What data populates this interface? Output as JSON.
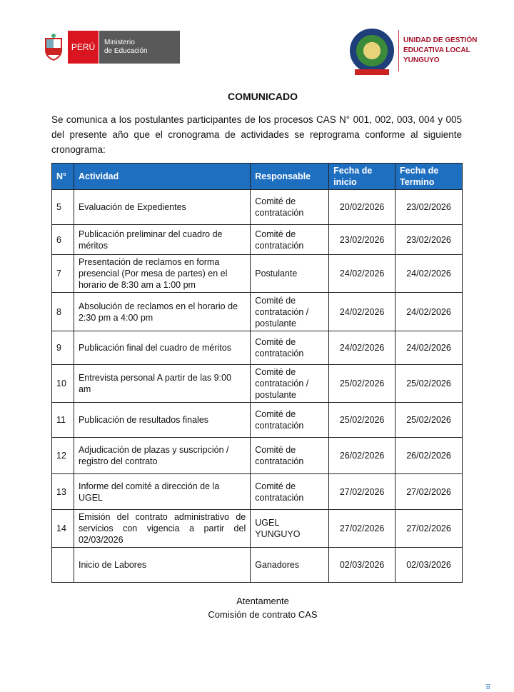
{
  "header": {
    "left_logo": {
      "country": "PERÚ",
      "ministry_line1": "Ministerio",
      "ministry_line2": "de Educación"
    },
    "right_logo": {
      "line1": "UNIDAD DE GESTIÓN",
      "line2": "EDUCATIVA LOCAL",
      "line3": "YUNGUYO"
    }
  },
  "title": "COMUNICADO",
  "intro": "Se comunica a los postulantes participantes de los procesos CAS N° 001, 002, 003, 004 y 005 del presente año que el cronograma de actividades se reprograma conforme al siguiente cronograma:",
  "table": {
    "header_color": "#1f6fc0",
    "columns": [
      "N°",
      "Actividad",
      "Responsable",
      "Fecha de inicio",
      "Fecha de Termino"
    ],
    "rows": [
      {
        "n": "5",
        "actividad": "Evaluación de Expedientes",
        "responsable": "Comité de contratación",
        "inicio": "20/02/2026",
        "termino": "23/02/2026"
      },
      {
        "n": "6",
        "actividad": "Publicación preliminar del cuadro de méritos",
        "responsable": "Comité de contratación",
        "inicio": "23/02/2026",
        "termino": "23/02/2026"
      },
      {
        "n": "7",
        "actividad": "Presentación de reclamos en forma presencial (Por mesa de partes) en el horario de 8:30 am a 1:00 pm",
        "responsable": "Postulante",
        "inicio": "24/02/2026",
        "termino": "24/02/2026"
      },
      {
        "n": "8",
        "actividad": "Absolución de reclamos en el horario de 2:30 pm a 4:00 pm",
        "responsable": "Comité de contratación / postulante",
        "inicio": "24/02/2026",
        "termino": "24/02/2026"
      },
      {
        "n": "9",
        "actividad": "Publicación final del cuadro de méritos",
        "responsable": "Comité de contratación",
        "inicio": "24/02/2026",
        "termino": "24/02/2026"
      },
      {
        "n": "10",
        "actividad": "Entrevista personal A partir de las 9:00 am",
        "responsable": "Comité de contratación / postulante",
        "inicio": "25/02/2026",
        "termino": "25/02/2026"
      },
      {
        "n": "11",
        "actividad": "Publicación de resultados finales",
        "responsable": "Comité de contratación",
        "inicio": "25/02/2026",
        "termino": "25/02/2026"
      },
      {
        "n": "12",
        "actividad": "Adjudicación de plazas y suscripción / registro del contrato",
        "responsable": "Comité de contratación",
        "inicio": "26/02/2026",
        "termino": "26/02/2026"
      },
      {
        "n": "13",
        "actividad": "Informe del comité a dirección de la UGEL",
        "responsable": "Comité de contratación",
        "inicio": "27/02/2026",
        "termino": "27/02/2026"
      },
      {
        "n": "14",
        "actividad": "Emisión del contrato administrativo de servicios con vigencia a partir del 02/03/2026",
        "responsable": "UGEL YUNGUYO",
        "inicio": "27/02/2026",
        "termino": "27/02/2026"
      },
      {
        "n": "",
        "actividad": "Inicio de Labores",
        "responsable": "Ganadores",
        "inicio": "02/03/2026",
        "termino": "02/03/2026"
      }
    ]
  },
  "closing": {
    "line1": "Atentamente",
    "line2": "Comisión de contrato CAS"
  }
}
